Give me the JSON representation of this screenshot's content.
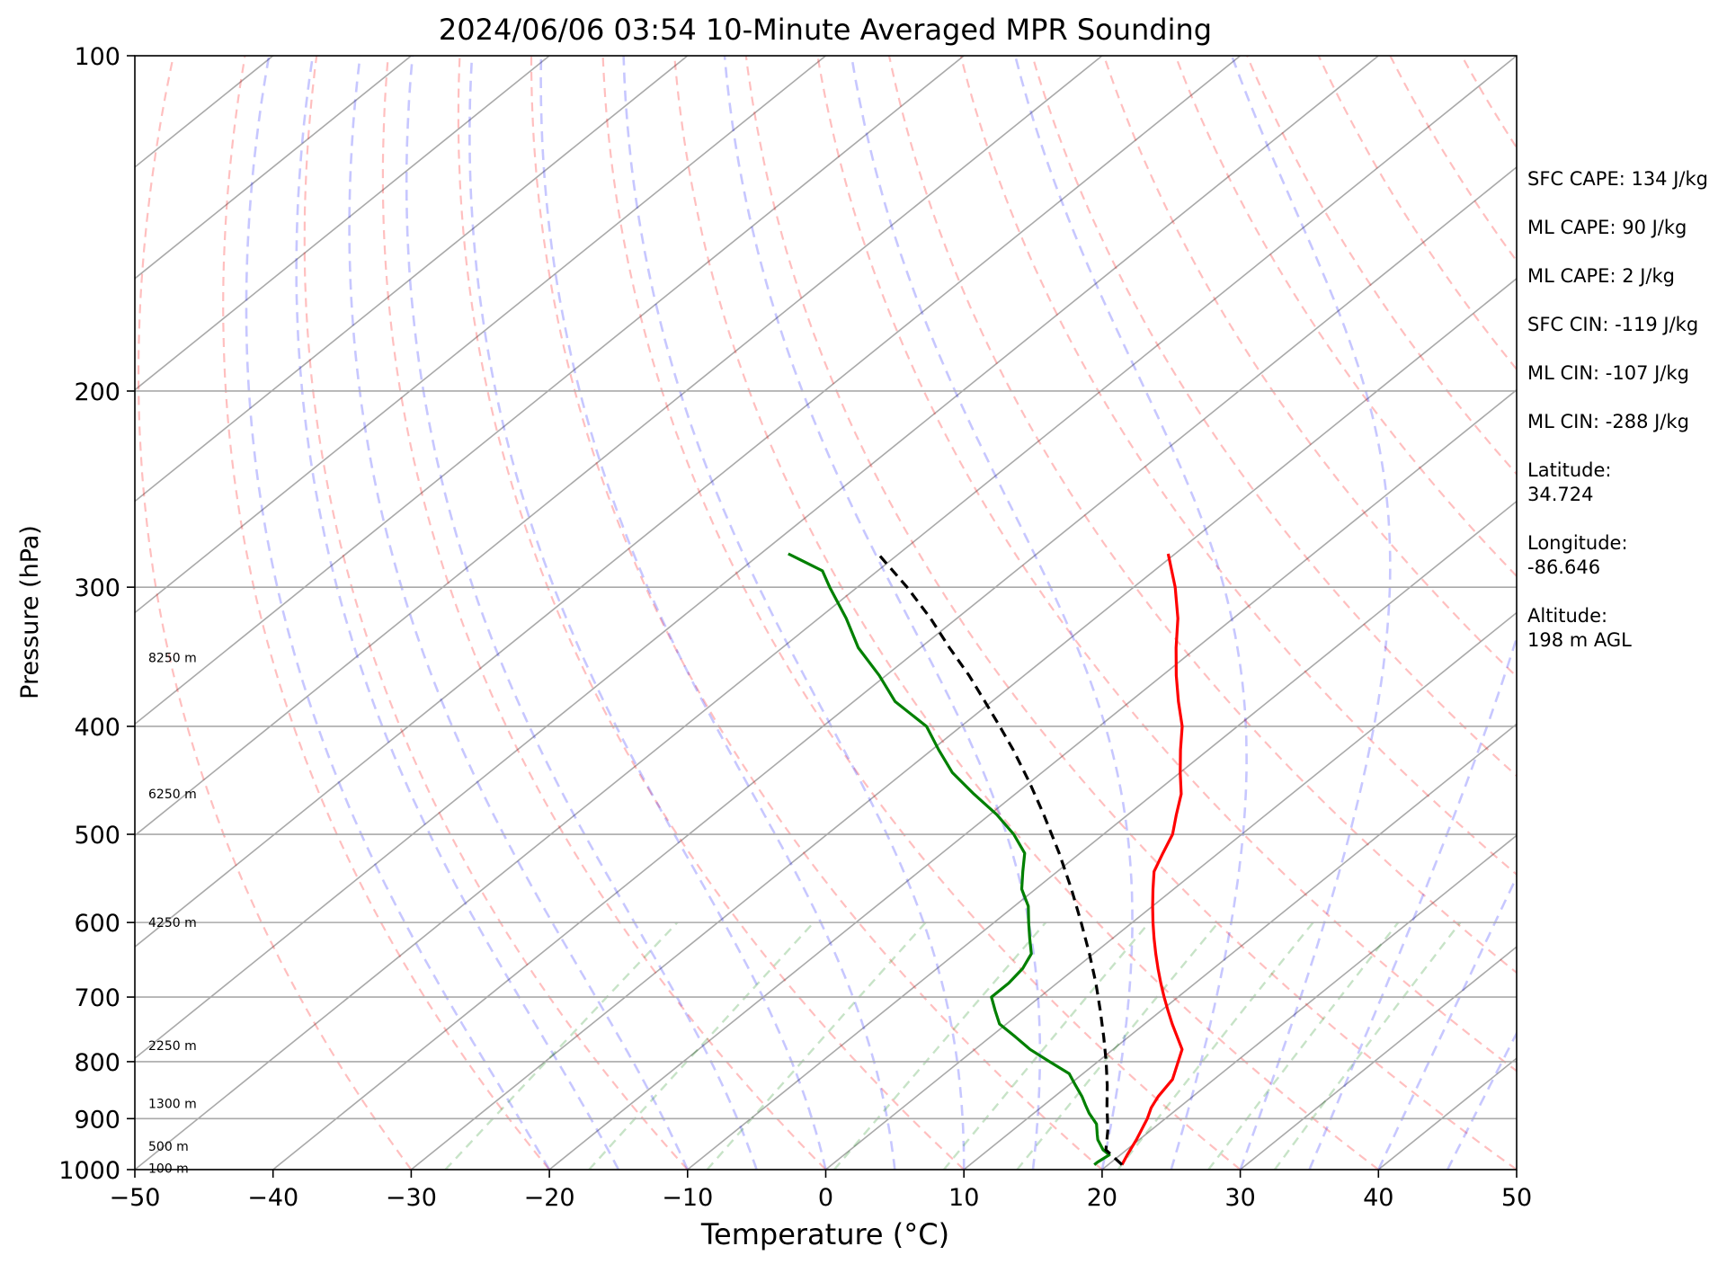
{
  "chart_data": {
    "type": "line",
    "subtype": "skew-T log-P sounding",
    "title": "2024/06/06 03:54 10-Minute Averaged MPR Sounding",
    "xlabel": "Temperature (°C)",
    "ylabel": "Pressure (hPa)",
    "xlim": [
      -50,
      50
    ],
    "ylim": [
      1000,
      100
    ],
    "y_scale": "log",
    "x_ticks": [
      -50,
      -40,
      -30,
      -20,
      -10,
      0,
      10,
      20,
      30,
      40,
      50
    ],
    "y_ticks": [
      1000,
      900,
      800,
      700,
      600,
      500,
      400,
      300,
      200,
      100
    ],
    "grid": true,
    "height_labels": [
      {
        "pressure": 347,
        "text": "8250 m"
      },
      {
        "pressure": 460,
        "text": "6250 m"
      },
      {
        "pressure": 600,
        "text": "4250 m"
      },
      {
        "pressure": 774,
        "text": "2250 m"
      },
      {
        "pressure": 872,
        "text": "1300 m"
      },
      {
        "pressure": 953,
        "text": "500 m"
      },
      {
        "pressure": 997,
        "text": "100 m"
      }
    ],
    "series": [
      {
        "name": "Temperature",
        "color": "#ff0000",
        "pressure": [
          990,
          970,
          940,
          900,
          880,
          860,
          830,
          780,
          740,
          720,
          700,
          680,
          660,
          640,
          620,
          600,
          580,
          560,
          540,
          520,
          500,
          480,
          460,
          440,
          420,
          400,
          380,
          360,
          340,
          320,
          300,
          280
        ],
        "temperature": [
          21,
          20.5,
          19.8,
          18.7,
          18.0,
          17.5,
          17.0,
          15.0,
          12.0,
          10.5,
          9.0,
          7.5,
          6.0,
          4.5,
          3.0,
          1.5,
          0.0,
          -1.5,
          -3.0,
          -4.0,
          -5.0,
          -6.5,
          -8.0,
          -10.0,
          -12.0,
          -14.0,
          -16.5,
          -19.0,
          -21.5,
          -24.0,
          -27.0,
          -30.5
        ]
      },
      {
        "name": "Dewpoint",
        "color": "#008000",
        "pressure": [
          990,
          985,
          970,
          960,
          940,
          930,
          910,
          890,
          875,
          860,
          840,
          820,
          800,
          780,
          760,
          740,
          720,
          700,
          680,
          660,
          640,
          620,
          600,
          580,
          560,
          540,
          520,
          500,
          480,
          460,
          440,
          420,
          400,
          380,
          360,
          340,
          320,
          300,
          290,
          280
        ],
        "temperature": [
          19.0,
          19.0,
          19.2,
          18.3,
          17.0,
          16.5,
          15.5,
          14.0,
          13.0,
          12.0,
          10.5,
          9.0,
          6.5,
          4.0,
          1.8,
          -0.5,
          -2.0,
          -3.5,
          -3.5,
          -3.8,
          -4.5,
          -6.0,
          -7.5,
          -9.0,
          -11.0,
          -12.5,
          -14.0,
          -16.5,
          -19.5,
          -23.0,
          -26.5,
          -29.5,
          -32.5,
          -37.0,
          -40.5,
          -44.5,
          -48.0,
          -52.0,
          -54.0,
          -58.0
        ]
      },
      {
        "name": "Parcel",
        "color": "#000000",
        "pressure": [
          990,
          960,
          920,
          880,
          840,
          800,
          760,
          720,
          680,
          640,
          600,
          560,
          520,
          480,
          450,
          420,
          400,
          380,
          360,
          340,
          320,
          300,
          280
        ],
        "temperature": [
          21.0,
          18.5,
          16.8,
          14.8,
          12.8,
          10.6,
          8.2,
          5.6,
          2.8,
          -0.3,
          -3.7,
          -7.4,
          -11.5,
          -16.1,
          -19.9,
          -24.1,
          -27.2,
          -30.5,
          -34.0,
          -37.9,
          -41.9,
          -46.4,
          -51.5
        ]
      }
    ]
  },
  "stats": [
    "SFC CAPE: 134 J/kg",
    "ML CAPE: 90 J/kg",
    "ML CAPE: 2 J/kg",
    "SFC CIN: -119 J/kg",
    "ML CIN: -107 J/kg",
    "ML CIN: -288 J/kg",
    "Latitude:\n34.724",
    "Longitude:\n-86.646",
    "Altitude:\n198 m AGL"
  ]
}
